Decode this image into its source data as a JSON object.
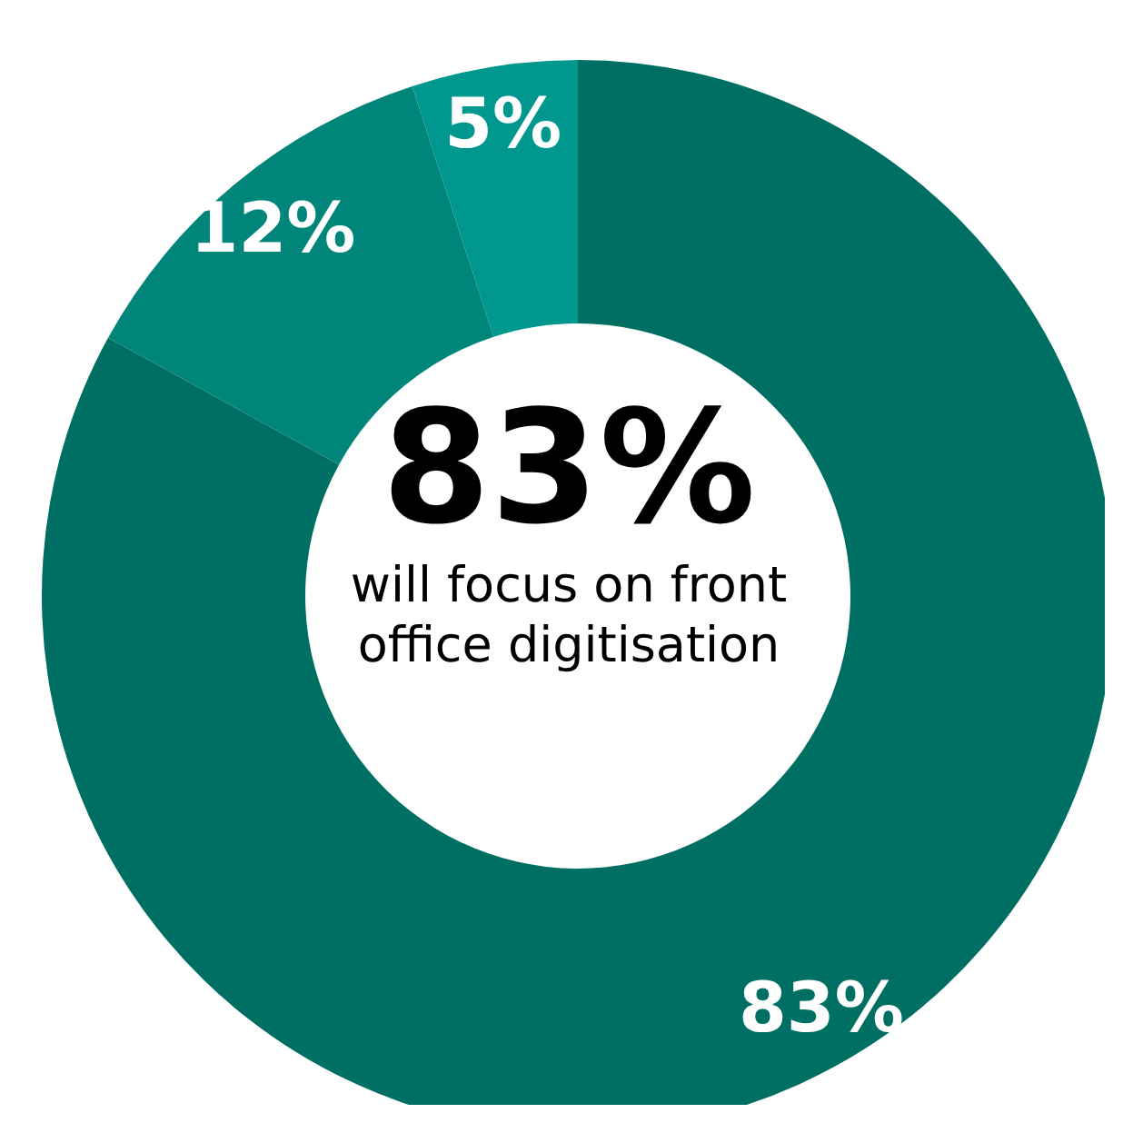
{
  "chart_data": {
    "type": "donut",
    "categories": [
      null,
      null,
      null
    ],
    "values": [
      83,
      12,
      5
    ],
    "colors": [
      "#006f63",
      "#00857a",
      "#00978f"
    ],
    "value_labels": [
      "83%",
      "12%",
      "5%"
    ],
    "annotations": [
      "83%",
      "will focus on front office digitisation"
    ],
    "legend": false
  }
}
